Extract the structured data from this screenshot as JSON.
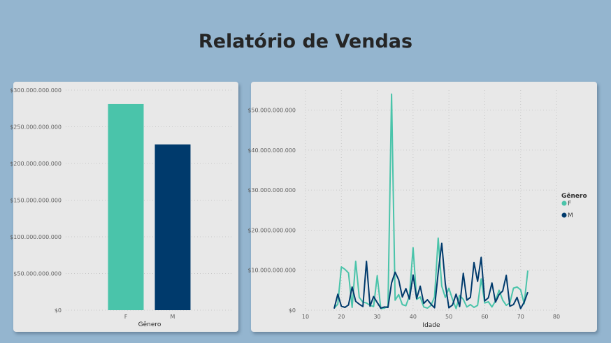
{
  "header": {
    "title": "Relatório de Vendas"
  },
  "colors": {
    "F": "#4ac4aa",
    "M": "#003a6c"
  },
  "chart_data": [
    {
      "type": "bar",
      "xlabel": "Gênero",
      "ylabel": "",
      "categories": [
        "F",
        "M"
      ],
      "values": [
        281000000000,
        226000000000
      ],
      "ylim": [
        0,
        300000000000
      ],
      "yticks": [
        0,
        50000000000,
        100000000000,
        150000000000,
        200000000000,
        250000000000,
        300000000000
      ],
      "ytick_labels": [
        "$0",
        "$50.000.000.000",
        "$100.000.000.000",
        "$150.000.000.000",
        "$200.000.000.000",
        "$250.000.000.000",
        "$300.000.000.000"
      ],
      "grid": true
    },
    {
      "type": "line",
      "xlabel": "Idade",
      "ylabel": "",
      "legend_title": "Gênero",
      "legend_position": "right",
      "xlim": [
        10,
        80
      ],
      "xticks": [
        10,
        20,
        30,
        40,
        50,
        60,
        70,
        80
      ],
      "xtick_labels": [
        "10",
        "20",
        "30",
        "40",
        "50",
        "60",
        "70",
        "80"
      ],
      "ylim": [
        0,
        55000000000
      ],
      "yticks": [
        0,
        10000000000,
        20000000000,
        30000000000,
        40000000000,
        50000000000
      ],
      "ytick_labels": [
        "$0",
        "$10.000.000.000",
        "$20.000.000.000",
        "$30.000.000.000",
        "$40.000.000.000",
        "$50.000.000.000"
      ],
      "grid": true,
      "x": [
        18,
        19,
        20,
        21,
        22,
        23,
        24,
        25,
        26,
        27,
        28,
        29,
        30,
        31,
        32,
        33,
        34,
        35,
        36,
        37,
        38,
        39,
        40,
        41,
        42,
        43,
        44,
        45,
        46,
        47,
        48,
        49,
        50,
        51,
        52,
        53,
        54,
        55,
        56,
        57,
        58,
        59,
        60,
        61,
        62,
        63,
        64,
        65,
        66,
        67,
        68,
        69,
        70,
        71,
        72,
        73,
        74,
        75
      ],
      "series": [
        {
          "name": "F",
          "values": [
            500000000,
            1500000000,
            10800000000,
            10200000000,
            9300000000,
            700000000,
            12200000000,
            3200000000,
            2000000000,
            1800000000,
            1200000000,
            900000000,
            8600000000,
            400000000,
            500000000,
            1000000000,
            54000000000,
            2500000000,
            3900000000,
            1400000000,
            1100000000,
            3600000000,
            15600000000,
            2700000000,
            3300000000,
            800000000,
            500000000,
            1200000000,
            3300000000,
            18000000000,
            6000000000,
            3200000000,
            5500000000,
            2700000000,
            400000000,
            3700000000,
            2700000000,
            800000000,
            1400000000,
            700000000,
            1200000000,
            7800000000,
            1800000000,
            2100000000,
            800000000,
            2300000000,
            5000000000,
            2500000000,
            1200000000,
            1800000000,
            5500000000,
            5800000000,
            5100000000,
            1600000000,
            9900000000,
            null,
            null,
            null
          ]
        },
        {
          "name": "M",
          "values": [
            400000000,
            4000000000,
            1000000000,
            700000000,
            1300000000,
            5800000000,
            2200000000,
            1500000000,
            900000000,
            12200000000,
            1000000000,
            3400000000,
            1900000000,
            500000000,
            800000000,
            700000000,
            6800000000,
            9500000000,
            7600000000,
            3300000000,
            5400000000,
            2800000000,
            8800000000,
            2900000000,
            6000000000,
            1700000000,
            2600000000,
            1500000000,
            600000000,
            9400000000,
            16700000000,
            6600000000,
            600000000,
            1300000000,
            4000000000,
            900000000,
            9200000000,
            2500000000,
            3200000000,
            11900000000,
            7200000000,
            13200000000,
            2300000000,
            3100000000,
            6800000000,
            2000000000,
            3900000000,
            4800000000,
            8700000000,
            1000000000,
            1400000000,
            3200000000,
            400000000,
            2000000000,
            4500000000,
            null,
            null,
            null
          ]
        }
      ]
    }
  ]
}
